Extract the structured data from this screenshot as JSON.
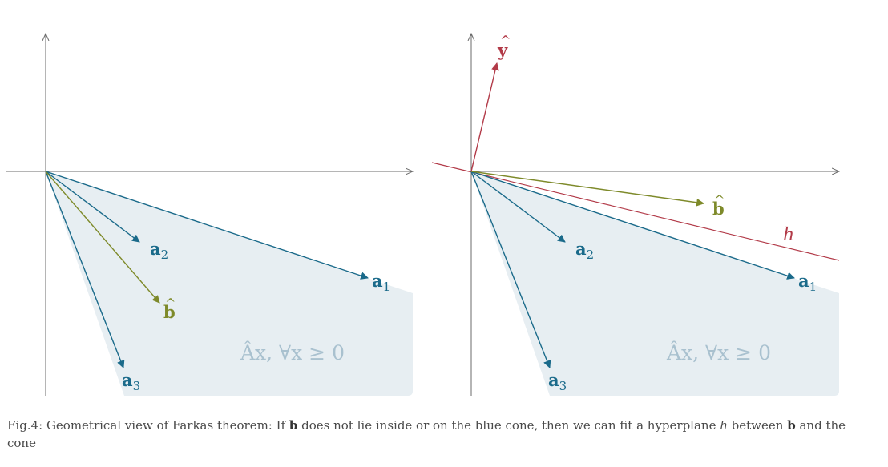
{
  "left_figure": {
    "labels": {
      "a1": "a",
      "a1_sub": "1",
      "a2": "a",
      "a2_sub": "2",
      "a3": "a",
      "a3_sub": "3",
      "b": "b",
      "b_hat": "^"
    },
    "cone_label": "Âx, ∀x ≥ 0"
  },
  "right_figure": {
    "labels": {
      "a1": "a",
      "a1_sub": "1",
      "a2": "a",
      "a2_sub": "2",
      "a3": "a",
      "a3_sub": "3",
      "b": "b",
      "b_hat": "^",
      "y": "y",
      "y_hat": "^",
      "h": "h"
    },
    "cone_label": "Âx, ∀x ≥ 0"
  },
  "colors": {
    "axis": "#6b6b6b",
    "cone_fill": "#e7eef2",
    "a_vectors": "#1a6a8a",
    "b_vector": "#7e8a2a",
    "y_vector": "#b23a48",
    "hyperplane": "#b23a48",
    "cone_label": "#a9c1cf"
  },
  "caption": {
    "prefix": "Fig.4: Geometrical view of Farkas theorem: If ",
    "b": "b",
    "mid": " does not lie inside or on the blue cone, then we can fit a hyperplane ",
    "h": "h",
    "between": " between ",
    "b2": "b",
    "suffix": " and the cone"
  }
}
